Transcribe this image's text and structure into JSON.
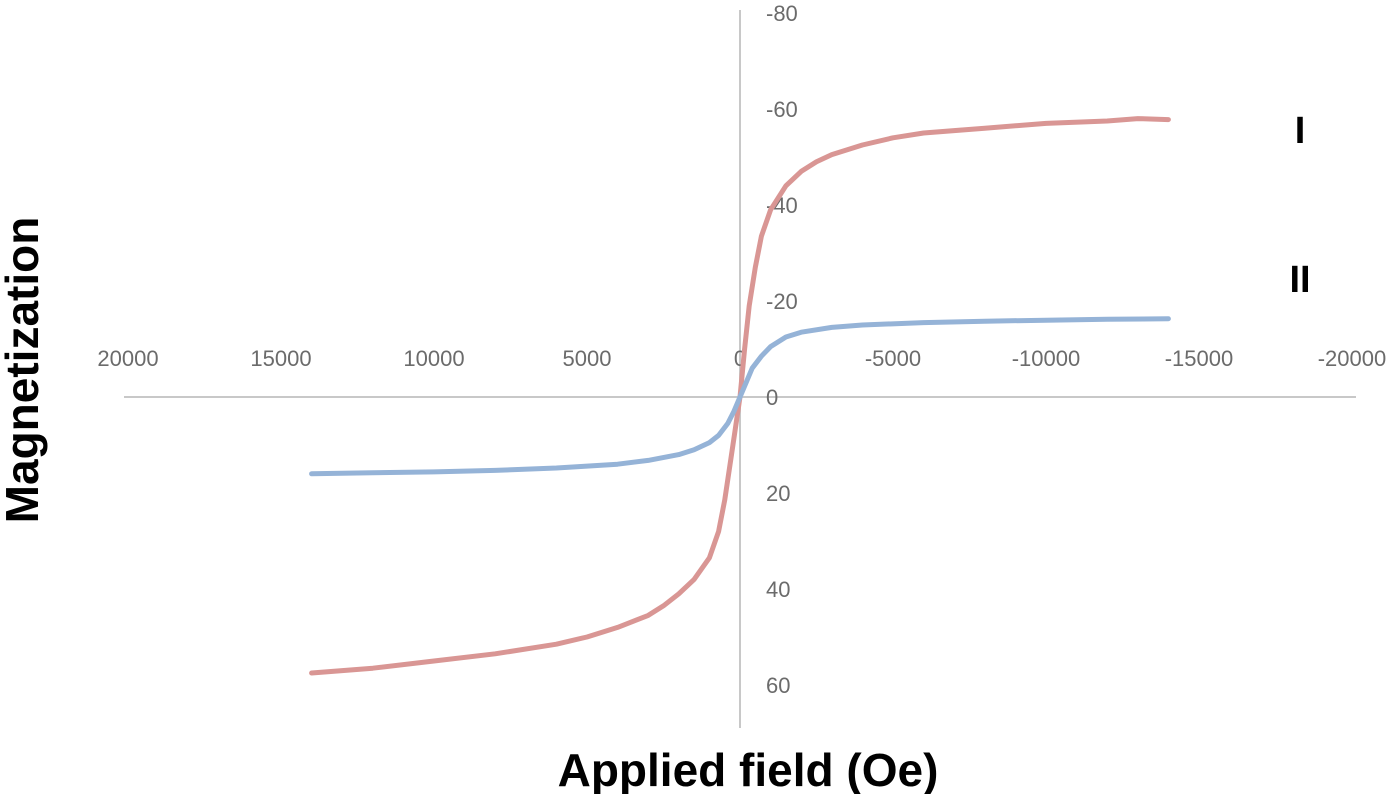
{
  "chart_data": {
    "type": "line",
    "title": "",
    "xlabel": "Applied field (Oe)",
    "ylabel": "Magnetization",
    "xlim": [
      20000,
      -20000
    ],
    "ylim": [
      -80,
      60
    ],
    "x_reversed": true,
    "y_reversed": true,
    "x_ticks": [
      20000,
      15000,
      10000,
      5000,
      0,
      -5000,
      -10000,
      -15000,
      -20000
    ],
    "x_tick_labels": [
      "20000",
      "15000",
      "10000",
      "5000",
      "0",
      "-5000",
      "-10000",
      "-15000",
      "-20000"
    ],
    "y_ticks": [
      -80,
      -60,
      -40,
      -20,
      0,
      20,
      40,
      60
    ],
    "y_tick_labels": [
      "-80",
      "-60",
      "-40",
      "-20",
      "0",
      "20",
      "40",
      "60"
    ],
    "grid": false,
    "legend": "none",
    "series": [
      {
        "name": "I",
        "color": "#d99694",
        "x": [
          14000,
          12000,
          10000,
          8000,
          6000,
          5000,
          4000,
          3000,
          2500,
          2000,
          1500,
          1000,
          700,
          500,
          300,
          150,
          0,
          -150,
          -300,
          -500,
          -700,
          -1000,
          -1500,
          -2000,
          -2500,
          -3000,
          -4000,
          -5000,
          -6000,
          -8000,
          -10000,
          -12000,
          -13000,
          -14000
        ],
        "y": [
          57.5,
          56.5,
          55.0,
          53.5,
          51.5,
          50.0,
          48.0,
          45.5,
          43.5,
          41.0,
          38.0,
          33.5,
          28.0,
          21.5,
          13.0,
          6.5,
          0,
          -10.0,
          -19.0,
          -27.0,
          -33.5,
          -39.0,
          -44.0,
          -47.0,
          -49.0,
          -50.5,
          -52.5,
          -54.0,
          -55.0,
          -56.0,
          -57.0,
          -57.5,
          -58.0,
          -57.8
        ]
      },
      {
        "name": "II",
        "color": "#95b3d7",
        "x": [
          14000,
          12000,
          10000,
          8000,
          6000,
          4000,
          3000,
          2000,
          1500,
          1000,
          700,
          400,
          200,
          0,
          -200,
          -400,
          -700,
          -1000,
          -1500,
          -2000,
          -3000,
          -4000,
          -6000,
          -8000,
          -10000,
          -12000,
          -14000
        ],
        "y": [
          16.0,
          15.8,
          15.6,
          15.3,
          14.8,
          14.0,
          13.2,
          12.0,
          11.0,
          9.5,
          8.0,
          5.5,
          3.0,
          0,
          -3.0,
          -6.0,
          -8.5,
          -10.5,
          -12.5,
          -13.5,
          -14.5,
          -15.0,
          -15.5,
          -15.8,
          -16.0,
          -16.2,
          -16.3
        ]
      }
    ]
  }
}
